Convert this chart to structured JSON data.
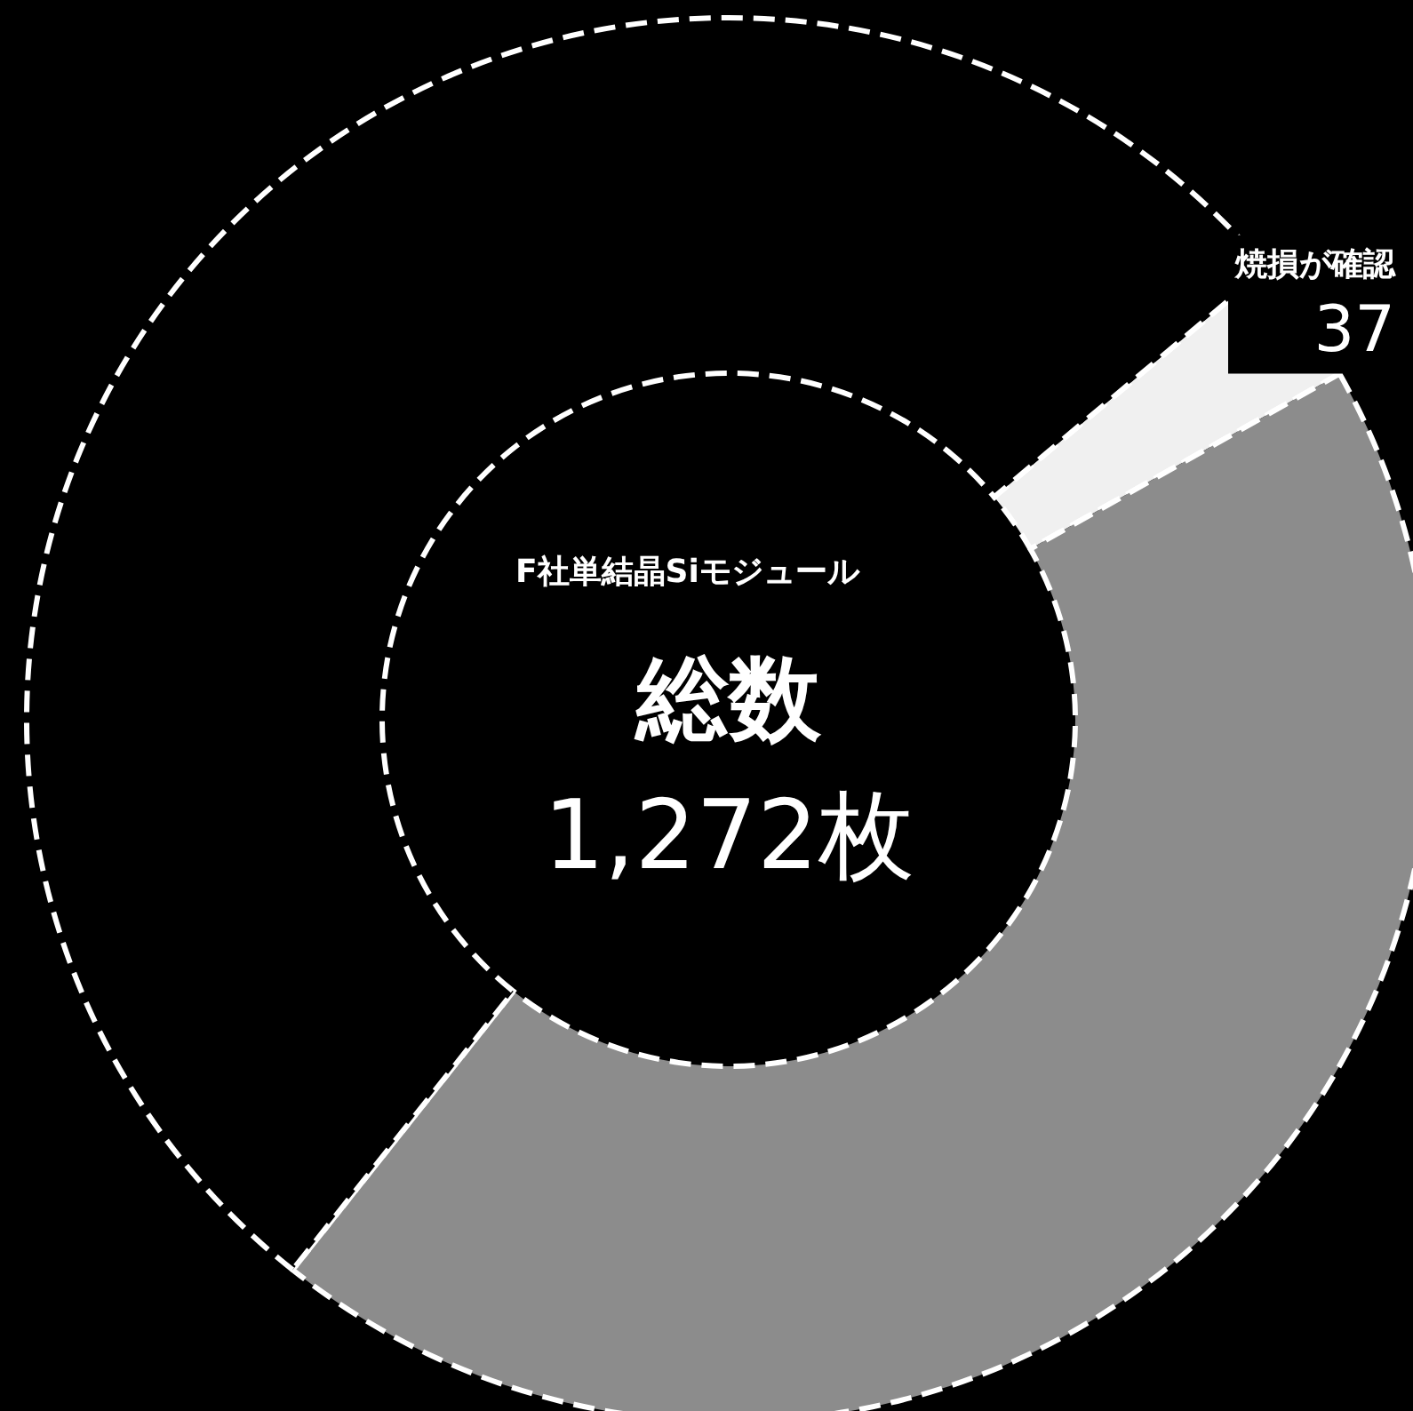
{
  "chart_data": {
    "type": "donut",
    "title": "F社単結晶Siモジュール",
    "annotations": [
      "総数",
      "1,272枚"
    ],
    "categories": [
      "焼損が確認",
      null,
      null
    ],
    "values": [
      37,
      558,
      677
    ],
    "value_labels": [
      "37",
      null,
      null
    ],
    "colors": [
      "#f0f0f0",
      "#8c8c8c",
      "#000000"
    ],
    "line_style": "dashed",
    "legend": false
  }
}
